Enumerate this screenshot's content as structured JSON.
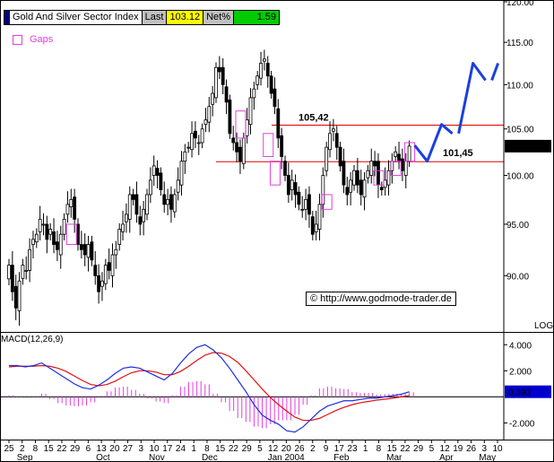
{
  "header": {
    "title": "Gold And Silver Sector Index",
    "last_label": "Last",
    "last_value": "103.12",
    "net_label": "Net%",
    "net_value": "1.59"
  },
  "legend": {
    "gaps_label": "Gaps"
  },
  "copyright": "© http://www.godmode-trader.de",
  "scale_label": "LOG",
  "colors": {
    "candle": "#000000",
    "gap_box": "#e040e0",
    "resistance": "#e00000",
    "forecast": "#1a3fe0",
    "macd_line": "#1a2fe0",
    "signal_line": "#e01010",
    "histogram": "#e040e0",
    "last_badge": "#000000",
    "macd_badge": "#0000cc"
  },
  "chart_data": [
    {
      "type": "candlestick",
      "title": "Gold And Silver Sector Index",
      "ylim": [
        85,
        120
      ],
      "yscale": "log",
      "yticks": [
        "120.00",
        "115.00",
        "110.00",
        "105.00",
        "100.00",
        "95.00",
        "90.00"
      ],
      "ytick_values": [
        120,
        115,
        110,
        105,
        100,
        95,
        90
      ],
      "last_price_label": "103.12",
      "last_price": 103.12,
      "horizontal_levels": [
        {
          "label": "105,42",
          "value": 105.42
        },
        {
          "label": "101,45",
          "value": 101.45
        }
      ],
      "closes": [
        91,
        88.5,
        87,
        89.5,
        91,
        90.5,
        92.5,
        93.5,
        94,
        95.5,
        95,
        93.5,
        94.5,
        93,
        92.5,
        94,
        95.5,
        97,
        97.5,
        95.5,
        93,
        92.5,
        92,
        93,
        91.5,
        90,
        88.5,
        89.5,
        91,
        90.5,
        92,
        92.5,
        94.5,
        95,
        96,
        98,
        97.5,
        96,
        95,
        96.5,
        98,
        99.5,
        101,
        100,
        98.5,
        97,
        97.5,
        96.5,
        98,
        99.5,
        101.5,
        102.5,
        103,
        104.5,
        104,
        103.5,
        105,
        106,
        107.5,
        109,
        112,
        111.5,
        110,
        108,
        104.5,
        103.5,
        102.5,
        101.5,
        104,
        106,
        108.5,
        109.5,
        111,
        112.5,
        113,
        111,
        109,
        107.5,
        104,
        102,
        100,
        98,
        99.5,
        98,
        97,
        96.5,
        97.5,
        96,
        94,
        95,
        97,
        100,
        103,
        104.5,
        105,
        103,
        101,
        99,
        98,
        99.5,
        100.5,
        99,
        98,
        99.5,
        100.5,
        101.5,
        101,
        99,
        98.5,
        99.5,
        100.5,
        101.5,
        102.5,
        101.5,
        100.5,
        101.5,
        103.12
      ],
      "gaps": [
        {
          "from": 93,
          "to": 95
        },
        {
          "from": 104,
          "to": 107
        },
        {
          "from": 102,
          "to": 104.5
        },
        {
          "from": 99,
          "to": 101.5
        },
        {
          "from": 96.5,
          "to": 98
        },
        {
          "from": 99,
          "to": 100.5
        },
        {
          "from": 100,
          "to": 101.5
        },
        {
          "from": 101.5,
          "to": 103.5
        }
      ],
      "forecast": {
        "segment_1": [
          103.2,
          101.5,
          105.5,
          104.5
        ],
        "segment_2": [
          104.5,
          112.5,
          110.5
        ],
        "segment_3": [
          110.5,
          112.5
        ]
      }
    },
    {
      "type": "line",
      "title": "MACD(12,26,9)",
      "ylim": [
        -3,
        4.5
      ],
      "yticks": [
        "4.000",
        "2.000",
        "-2.000"
      ],
      "ytick_values": [
        4,
        2,
        -2
      ],
      "last_macd_label": "0.393",
      "last_macd": 0.393,
      "series": [
        {
          "name": "MACD",
          "values": [
            2.4,
            2.4,
            2.3,
            2.4,
            2.6,
            2.2,
            1.8,
            1.4,
            1.0,
            0.7,
            0.6,
            0.9,
            1.3,
            1.8,
            2.2,
            2.3,
            2.2,
            1.9,
            1.6,
            1.3,
            1.8,
            2.6,
            3.3,
            3.8,
            4.0,
            3.6,
            3.0,
            2.2,
            1.3,
            0.4,
            -0.6,
            -1.4,
            -1.8,
            -2.1,
            -2.6,
            -2.7,
            -2.3,
            -1.7,
            -1.1,
            -0.7,
            -0.5,
            -0.3,
            -0.3,
            -0.2,
            -0.1,
            -0.1,
            0.0,
            0.1,
            0.2,
            0.393
          ]
        },
        {
          "name": "Signal",
          "values": [
            2.3,
            2.35,
            2.35,
            2.35,
            2.4,
            2.35,
            2.2,
            1.95,
            1.6,
            1.25,
            0.95,
            0.85,
            0.95,
            1.2,
            1.55,
            1.85,
            2.0,
            2.0,
            1.9,
            1.7,
            1.7,
            1.95,
            2.35,
            2.8,
            3.2,
            3.4,
            3.35,
            3.1,
            2.65,
            2.0,
            1.3,
            0.6,
            -0.05,
            -0.6,
            -1.1,
            -1.55,
            -1.8,
            -1.8,
            -1.65,
            -1.35,
            -1.05,
            -0.8,
            -0.6,
            -0.45,
            -0.35,
            -0.25,
            -0.18,
            -0.1,
            0.0,
            0.1
          ]
        }
      ]
    }
  ],
  "x_axis": {
    "day_labels": [
      "25",
      "2",
      "8",
      "15",
      "22",
      "29",
      "6",
      "13",
      "20",
      "27",
      "3",
      "10",
      "17",
      "24",
      "1",
      "8",
      "15",
      "22",
      "29",
      "5",
      "12",
      "20",
      "26",
      "2",
      "9",
      "17",
      "23",
      "1",
      "8",
      "15",
      "22",
      "29",
      "5",
      "12",
      "19",
      "26",
      "3",
      "10"
    ],
    "month_labels": [
      "Sep",
      "Oct",
      "Nov",
      "Dec",
      "Jan 2004",
      "Feb",
      "Mar",
      "Apr",
      "May"
    ]
  }
}
